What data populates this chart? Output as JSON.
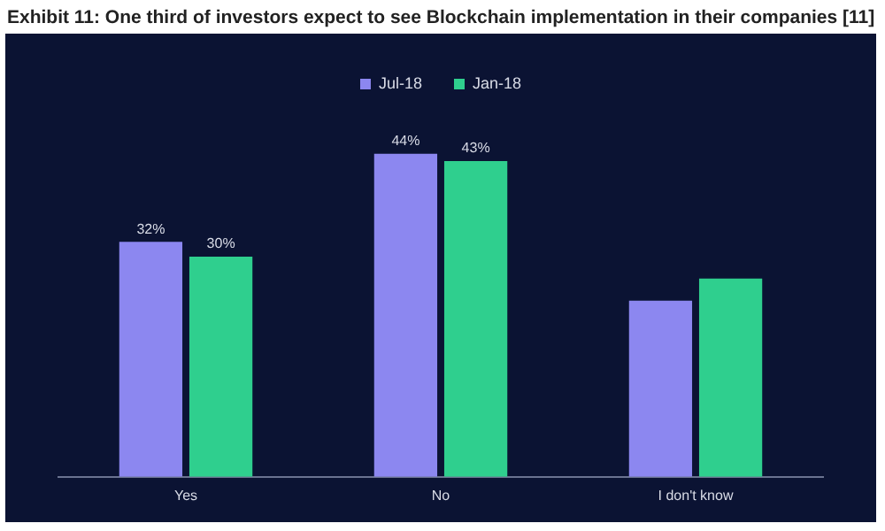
{
  "chart_data": {
    "type": "bar",
    "title": "Exhibit 11: One third of investors expect to see Blockchain implementation in their companies [11]",
    "categories": [
      "Yes",
      "No",
      "I don't know"
    ],
    "series": [
      {
        "name": "Jul-18",
        "color": "#8c87f0",
        "values": [
          32,
          44,
          24
        ],
        "value_labels": [
          "32%",
          "44%",
          null
        ]
      },
      {
        "name": "Jan-18",
        "color": "#2fcf8e",
        "values": [
          30,
          43,
          27
        ],
        "value_labels": [
          "30%",
          "43%",
          null
        ]
      }
    ],
    "legend": "top",
    "grid": false
  }
}
